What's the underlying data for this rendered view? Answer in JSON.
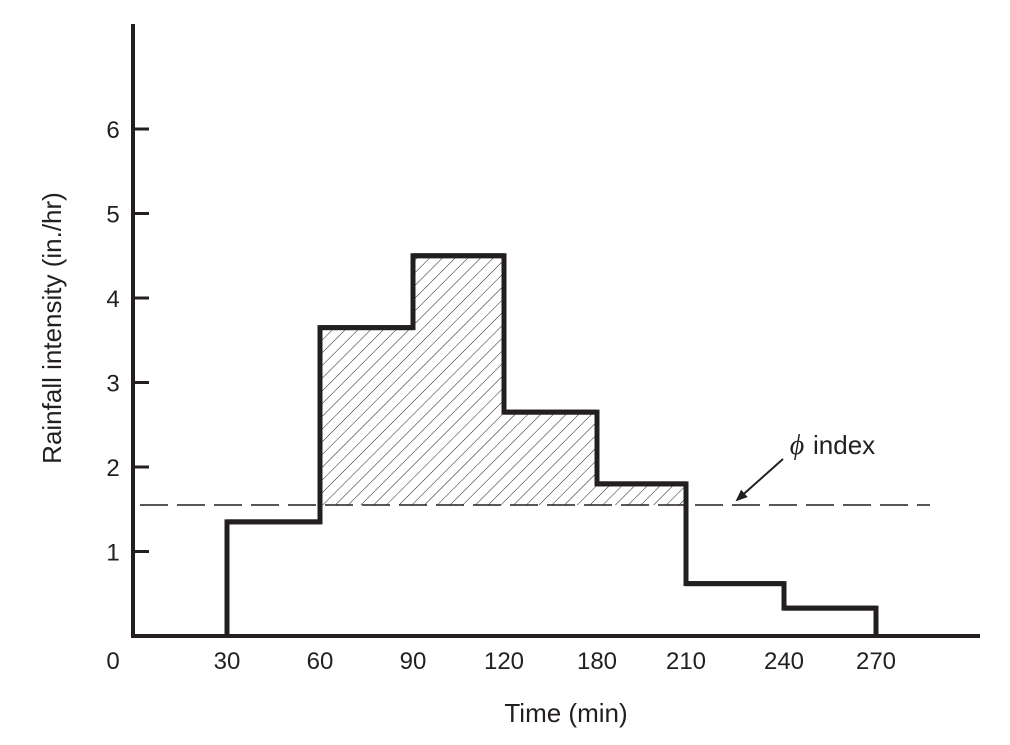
{
  "chart_data": {
    "type": "bar",
    "title": "",
    "xlabel": "Time (min)",
    "ylabel": "Rainfall intensity (in./hr)",
    "origin_label": "0",
    "x_tick_labels": [
      "30",
      "60",
      "90",
      "120",
      "180",
      "210",
      "240",
      "270"
    ],
    "y_ticks": [
      1,
      2,
      3,
      4,
      5,
      6
    ],
    "ylim": [
      0,
      7
    ],
    "steps": [
      {
        "interval": [
          "30",
          "60"
        ],
        "value": 1.35
      },
      {
        "interval": [
          "60",
          "90"
        ],
        "value": 3.65
      },
      {
        "interval": [
          "90",
          "120"
        ],
        "value": 4.5
      },
      {
        "interval": [
          "120",
          "180"
        ],
        "value": 2.65
      },
      {
        "interval": [
          "180",
          "210"
        ],
        "value": 1.8
      },
      {
        "interval": [
          "210",
          "240"
        ],
        "value": 0.62
      },
      {
        "interval": [
          "240",
          "270"
        ],
        "value": 0.33
      }
    ],
    "phi_index": {
      "value": 1.55,
      "symbol": "ϕ",
      "label": "index"
    },
    "shading": "excess rainfall above ϕ index (hatched)",
    "grid": false,
    "colors": {
      "line": "#231f20",
      "background": "#ffffff"
    }
  }
}
